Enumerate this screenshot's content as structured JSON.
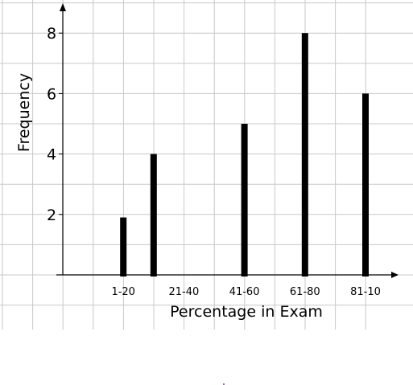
{
  "chart_data": {
    "type": "bar",
    "xlabel": "Percentage in Exam",
    "ylabel": "Frequency",
    "x_tick_labels": [
      "1-20",
      "21-40",
      "41-60",
      "61-80",
      "81-10"
    ],
    "y_tick_labels": [
      "2",
      "4",
      "6",
      "8"
    ],
    "bars": [
      {
        "x": 2,
        "value": 1.9
      },
      {
        "x": 3,
        "value": 4
      },
      {
        "x": 6,
        "value": 5
      },
      {
        "x": 8,
        "value": 8
      },
      {
        "x": 10,
        "value": 6
      }
    ],
    "ylim": [
      0,
      9
    ],
    "grid": true,
    "colors": {
      "bar": "#000000",
      "grid": "#c8c8c8",
      "axis": "#000000"
    }
  }
}
